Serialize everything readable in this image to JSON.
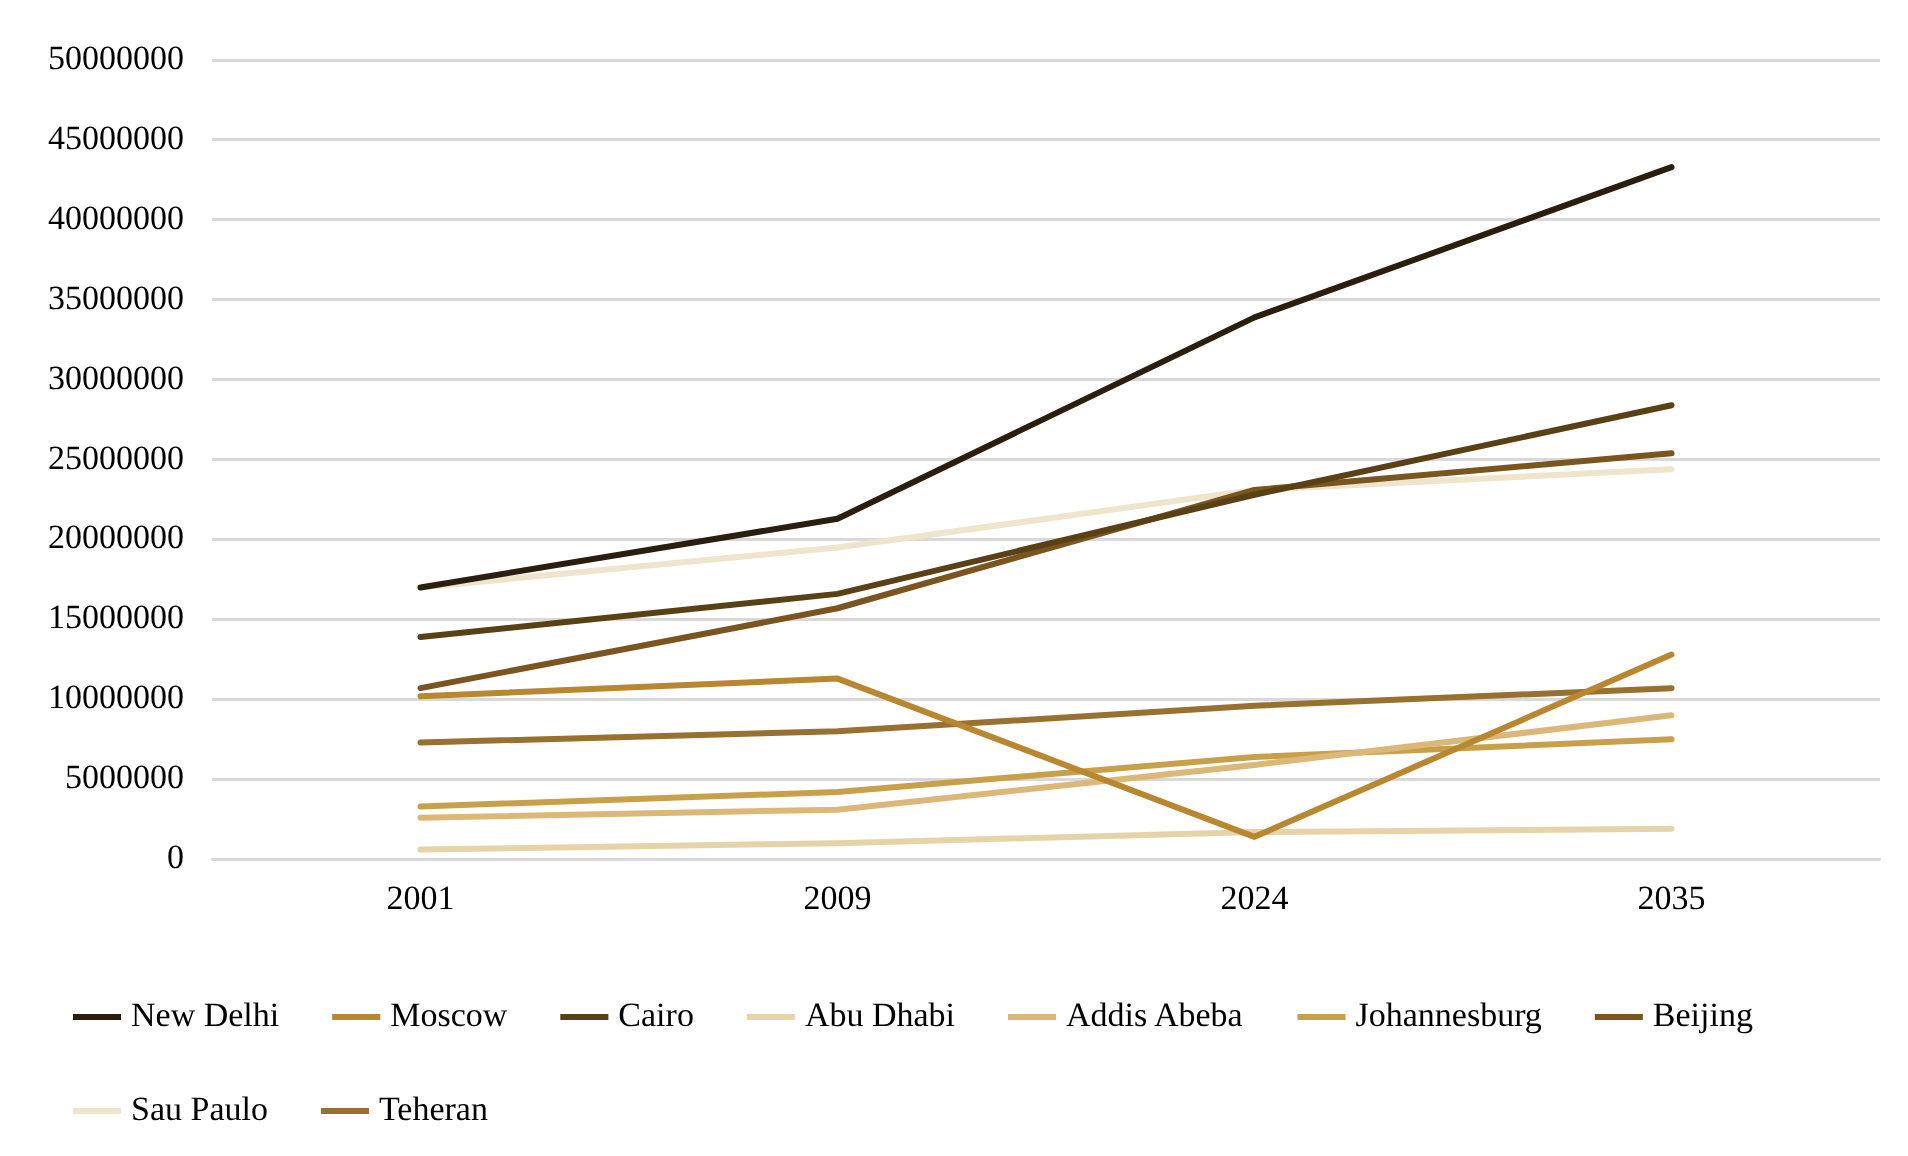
{
  "chart_data": {
    "type": "line",
    "categories": [
      "2001",
      "2009",
      "2024",
      "2035"
    ],
    "series": [
      {
        "name": "New Delhi",
        "color": "#2a1e0e",
        "values": [
          17000000,
          21300000,
          33900000,
          43300000
        ]
      },
      {
        "name": "Moscow",
        "color": "#b8872f",
        "values": [
          10200000,
          11300000,
          1400000,
          12800000
        ]
      },
      {
        "name": "Cairo",
        "color": "#5a4015",
        "values": [
          13900000,
          16600000,
          22800000,
          28400000
        ]
      },
      {
        "name": "Abu Dhabi",
        "color": "#e6d3a8",
        "values": [
          600000,
          1000000,
          1700000,
          1900000
        ]
      },
      {
        "name": "Addis Abeba",
        "color": "#dcb878",
        "values": [
          2600000,
          3100000,
          5900000,
          9000000
        ]
      },
      {
        "name": "Johannesburg",
        "color": "#c9a04a",
        "values": [
          3300000,
          4200000,
          6400000,
          7500000
        ]
      },
      {
        "name": "Beijing",
        "color": "#7a5520",
        "values": [
          10700000,
          15700000,
          23100000,
          25400000
        ]
      },
      {
        "name": "Sau Paulo",
        "color": "#efe4cc",
        "values": [
          17000000,
          19500000,
          23100000,
          24400000
        ]
      },
      {
        "name": "Teheran",
        "color": "#987030",
        "values": [
          7300000,
          8000000,
          9600000,
          10700000
        ]
      }
    ],
    "ylim": [
      0,
      50000000
    ],
    "yticks": [
      0,
      5000000,
      10000000,
      15000000,
      20000000,
      25000000,
      30000000,
      35000000,
      40000000,
      45000000,
      50000000
    ],
    "grid": "y",
    "legend": "bottom",
    "marker": "none",
    "line_style": "solid"
  }
}
